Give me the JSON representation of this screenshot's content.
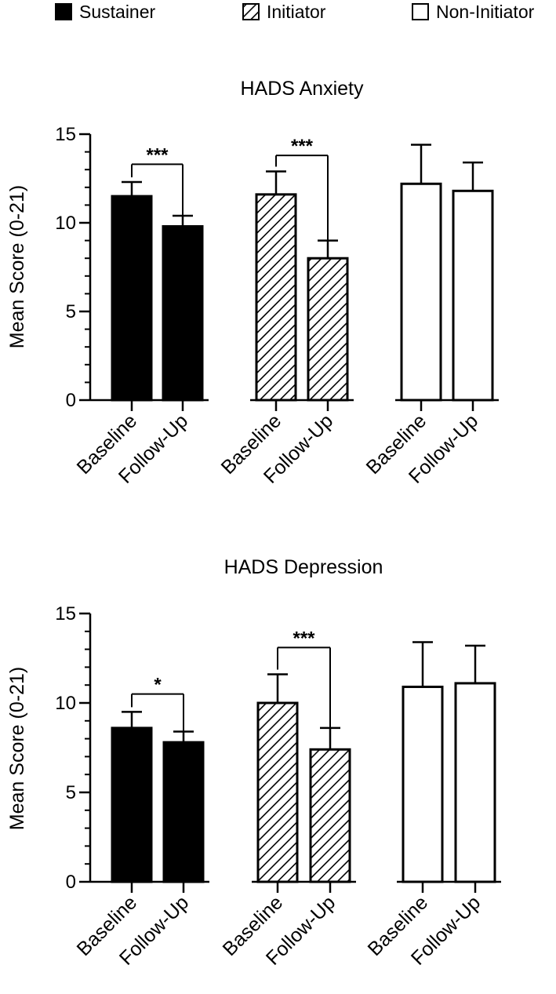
{
  "legend": {
    "position": "top",
    "items": [
      {
        "label": "Sustainer",
        "fill": "solid-black"
      },
      {
        "label": "Initiator",
        "fill": "diagonal-hatch"
      },
      {
        "label": "Non-Initiator",
        "fill": "white"
      }
    ]
  },
  "colors": {
    "ink": "#000000",
    "background": "#ffffff"
  },
  "chart_data": [
    {
      "type": "bar",
      "title": "HADS Anxiety",
      "ylabel": "Mean Score (0-21)",
      "xlabel": "",
      "ylim": [
        0,
        15
      ],
      "yticks": [
        0,
        5,
        10,
        15
      ],
      "categories": [
        "Baseline",
        "Follow-Up"
      ],
      "series": [
        {
          "name": "Sustainer",
          "values": [
            11.5,
            9.8
          ],
          "error": [
            0.8,
            0.6
          ]
        },
        {
          "name": "Initiator",
          "values": [
            11.6,
            8.0
          ],
          "error": [
            1.3,
            1.0
          ]
        },
        {
          "name": "Non-Initiator",
          "values": [
            12.2,
            11.8
          ],
          "error": [
            2.2,
            1.6
          ]
        }
      ],
      "significance": [
        {
          "series": "Sustainer",
          "label": "***",
          "y": 13.3
        },
        {
          "series": "Initiator",
          "label": "***",
          "y": 13.8
        }
      ]
    },
    {
      "type": "bar",
      "title": "HADS Depression",
      "ylabel": "Mean Score (0-21)",
      "xlabel": "",
      "ylim": [
        0,
        15
      ],
      "yticks": [
        0,
        5,
        10,
        15
      ],
      "categories": [
        "Baseline",
        "Follow-Up"
      ],
      "series": [
        {
          "name": "Sustainer",
          "values": [
            8.6,
            7.8
          ],
          "error": [
            0.9,
            0.6
          ]
        },
        {
          "name": "Initiator",
          "values": [
            10.0,
            7.4
          ],
          "error": [
            1.6,
            1.2
          ]
        },
        {
          "name": "Non-Initiator",
          "values": [
            10.9,
            11.1
          ],
          "error": [
            2.5,
            2.1
          ]
        }
      ],
      "significance": [
        {
          "series": "Sustainer",
          "label": "*",
          "y": 10.5
        },
        {
          "series": "Initiator",
          "label": "***",
          "y": 13.1
        }
      ]
    }
  ]
}
